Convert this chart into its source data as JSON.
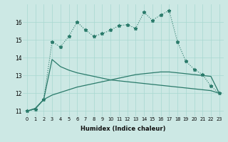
{
  "xlabel": "Humidex (Indice chaleur)",
  "bg_color": "#cce8e4",
  "line_color": "#2a7a6a",
  "grid_color": "#a8d8d0",
  "xlim": [
    -0.5,
    23.5
  ],
  "ylim": [
    10.7,
    17.0
  ],
  "yticks": [
    11,
    12,
    13,
    14,
    15,
    16
  ],
  "xticks": [
    0,
    1,
    2,
    3,
    4,
    5,
    6,
    7,
    8,
    9,
    10,
    11,
    12,
    13,
    14,
    15,
    16,
    17,
    18,
    19,
    20,
    21,
    22,
    23
  ],
  "line1_x": [
    0,
    1,
    2,
    3,
    4,
    5,
    6,
    7,
    8,
    9,
    10,
    11,
    12,
    13,
    14,
    15,
    16,
    17,
    18,
    19,
    20,
    21,
    22,
    23
  ],
  "line1_y": [
    11.0,
    11.1,
    11.65,
    14.9,
    14.6,
    15.2,
    16.0,
    15.55,
    15.2,
    15.35,
    15.55,
    15.8,
    15.85,
    15.65,
    16.55,
    16.1,
    16.4,
    16.65,
    14.9,
    13.8,
    13.35,
    13.05,
    12.4,
    12.0
  ],
  "line2_x": [
    0,
    1,
    2,
    3,
    4,
    5,
    6,
    7,
    8,
    9,
    10,
    11,
    12,
    13,
    14,
    15,
    16,
    17,
    18,
    19,
    20,
    21,
    22,
    23
  ],
  "line2_y": [
    11.0,
    11.15,
    11.65,
    13.9,
    13.5,
    13.3,
    13.15,
    13.05,
    12.95,
    12.85,
    12.75,
    12.7,
    12.65,
    12.6,
    12.55,
    12.5,
    12.45,
    12.4,
    12.35,
    12.3,
    12.25,
    12.2,
    12.15,
    12.0
  ],
  "line3_x": [
    0,
    1,
    2,
    3,
    4,
    5,
    6,
    7,
    8,
    9,
    10,
    11,
    12,
    13,
    14,
    15,
    16,
    17,
    18,
    19,
    20,
    21,
    22,
    23
  ],
  "line3_y": [
    11.0,
    11.15,
    11.65,
    11.9,
    12.05,
    12.2,
    12.35,
    12.45,
    12.55,
    12.65,
    12.75,
    12.85,
    12.95,
    13.05,
    13.1,
    13.15,
    13.2,
    13.2,
    13.15,
    13.1,
    13.05,
    13.0,
    12.95,
    12.0
  ]
}
